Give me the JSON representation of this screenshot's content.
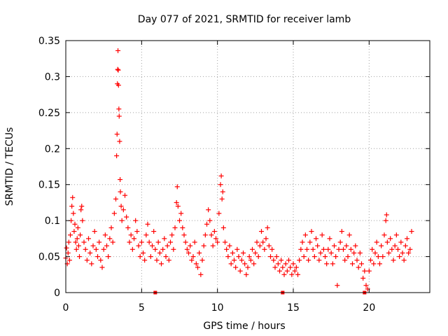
{
  "chart_data": {
    "type": "scatter",
    "title": "Day 077 of 2021, SRMTID for receiver lamb",
    "xlabel": "GPS time / hours",
    "ylabel": "SRMTID / TECUs",
    "xlim": [
      0,
      24
    ],
    "ylim": [
      0,
      0.35
    ],
    "xticks": [
      0,
      5,
      10,
      15,
      20
    ],
    "xtick_labels": [
      "0",
      "5",
      "10",
      "15",
      "20"
    ],
    "yticks": [
      0,
      0.05,
      0.1,
      0.15,
      0.2,
      0.25,
      0.3,
      0.35
    ],
    "ytick_labels": [
      "0",
      "0.05",
      "0.1",
      "0.15",
      "0.2",
      "0.25",
      "0.3",
      "0.35"
    ],
    "grid": true,
    "marker": "plus",
    "color": "#ff0000",
    "series": [
      {
        "name": "SRMTID",
        "points": [
          [
            0.0,
            0.048
          ],
          [
            0.05,
            0.062
          ],
          [
            0.1,
            0.04
          ],
          [
            0.15,
            0.055
          ],
          [
            0.2,
            0.07
          ],
          [
            0.25,
            0.045
          ],
          [
            0.3,
            0.08
          ],
          [
            0.35,
            0.1
          ],
          [
            0.4,
            0.12
          ],
          [
            0.45,
            0.132
          ],
          [
            0.5,
            0.11
          ],
          [
            0.55,
            0.085
          ],
          [
            0.6,
            0.095
          ],
          [
            0.65,
            0.07
          ],
          [
            0.7,
            0.06
          ],
          [
            0.75,
            0.075
          ],
          [
            0.8,
            0.09
          ],
          [
            0.85,
            0.065
          ],
          [
            0.9,
            0.05
          ],
          [
            0.95,
            0.08
          ],
          [
            1.0,
            0.115
          ],
          [
            1.05,
            0.12
          ],
          [
            1.1,
            0.1
          ],
          [
            1.2,
            0.07
          ],
          [
            1.3,
            0.06
          ],
          [
            1.4,
            0.045
          ],
          [
            1.5,
            0.075
          ],
          [
            1.6,
            0.055
          ],
          [
            1.7,
            0.04
          ],
          [
            1.8,
            0.065
          ],
          [
            1.9,
            0.085
          ],
          [
            2.0,
            0.06
          ],
          [
            2.1,
            0.05
          ],
          [
            2.2,
            0.07
          ],
          [
            2.3,
            0.045
          ],
          [
            2.4,
            0.035
          ],
          [
            2.5,
            0.06
          ],
          [
            2.6,
            0.08
          ],
          [
            2.7,
            0.065
          ],
          [
            2.8,
            0.05
          ],
          [
            2.9,
            0.075
          ],
          [
            3.0,
            0.09
          ],
          [
            3.1,
            0.07
          ],
          [
            3.2,
            0.11
          ],
          [
            3.3,
            0.13
          ],
          [
            3.35,
            0.19
          ],
          [
            3.38,
            0.22
          ],
          [
            3.4,
            0.29
          ],
          [
            3.42,
            0.31
          ],
          [
            3.44,
            0.336
          ],
          [
            3.46,
            0.309
          ],
          [
            3.48,
            0.288
          ],
          [
            3.5,
            0.255
          ],
          [
            3.52,
            0.245
          ],
          [
            3.55,
            0.21
          ],
          [
            3.58,
            0.157
          ],
          [
            3.6,
            0.14
          ],
          [
            3.65,
            0.12
          ],
          [
            3.7,
            0.1
          ],
          [
            3.8,
            0.115
          ],
          [
            3.9,
            0.135
          ],
          [
            4.0,
            0.105
          ],
          [
            4.1,
            0.09
          ],
          [
            4.2,
            0.07
          ],
          [
            4.3,
            0.08
          ],
          [
            4.4,
            0.06
          ],
          [
            4.5,
            0.075
          ],
          [
            4.6,
            0.1
          ],
          [
            4.7,
            0.085
          ],
          [
            4.8,
            0.065
          ],
          [
            4.9,
            0.05
          ],
          [
            5.0,
            0.07
          ],
          [
            5.1,
            0.055
          ],
          [
            5.2,
            0.045
          ],
          [
            5.3,
            0.08
          ],
          [
            5.4,
            0.095
          ],
          [
            5.5,
            0.07
          ],
          [
            5.6,
            0.05
          ],
          [
            5.7,
            0.065
          ],
          [
            5.8,
            0.085
          ],
          [
            5.9,
            0.06
          ],
          [
            6.0,
            0.045
          ],
          [
            6.1,
            0.07
          ],
          [
            6.2,
            0.055
          ],
          [
            6.3,
            0.04
          ],
          [
            6.4,
            0.06
          ],
          [
            6.5,
            0.075
          ],
          [
            6.6,
            0.05
          ],
          [
            6.7,
            0.065
          ],
          [
            6.8,
            0.045
          ],
          [
            6.9,
            0.07
          ],
          [
            7.0,
            0.08
          ],
          [
            7.1,
            0.06
          ],
          [
            7.2,
            0.09
          ],
          [
            7.3,
            0.125
          ],
          [
            7.35,
            0.147
          ],
          [
            7.4,
            0.12
          ],
          [
            7.5,
            0.1
          ],
          [
            7.6,
            0.11
          ],
          [
            7.7,
            0.09
          ],
          [
            7.8,
            0.08
          ],
          [
            7.9,
            0.07
          ],
          [
            8.0,
            0.06
          ],
          [
            8.1,
            0.055
          ],
          [
            8.2,
            0.065
          ],
          [
            8.3,
            0.045
          ],
          [
            8.4,
            0.05
          ],
          [
            8.5,
            0.07
          ],
          [
            8.6,
            0.04
          ],
          [
            8.7,
            0.035
          ],
          [
            8.8,
            0.055
          ],
          [
            8.9,
            0.025
          ],
          [
            9.0,
            0.045
          ],
          [
            9.1,
            0.065
          ],
          [
            9.2,
            0.08
          ],
          [
            9.3,
            0.095
          ],
          [
            9.4,
            0.115
          ],
          [
            9.5,
            0.1
          ],
          [
            9.6,
            0.08
          ],
          [
            9.7,
            0.065
          ],
          [
            9.8,
            0.085
          ],
          [
            9.9,
            0.075
          ],
          [
            10.0,
            0.07
          ],
          [
            10.1,
            0.11
          ],
          [
            10.2,
            0.15
          ],
          [
            10.25,
            0.162
          ],
          [
            10.3,
            0.13
          ],
          [
            10.35,
            0.14
          ],
          [
            10.4,
            0.09
          ],
          [
            10.5,
            0.07
          ],
          [
            10.6,
            0.06
          ],
          [
            10.7,
            0.05
          ],
          [
            10.8,
            0.065
          ],
          [
            10.9,
            0.04
          ],
          [
            11.0,
            0.055
          ],
          [
            11.1,
            0.045
          ],
          [
            11.2,
            0.035
          ],
          [
            11.3,
            0.06
          ],
          [
            11.4,
            0.05
          ],
          [
            11.5,
            0.03
          ],
          [
            11.6,
            0.045
          ],
          [
            11.7,
            0.055
          ],
          [
            11.8,
            0.04
          ],
          [
            11.9,
            0.025
          ],
          [
            12.0,
            0.035
          ],
          [
            12.1,
            0.05
          ],
          [
            12.2,
            0.045
          ],
          [
            12.3,
            0.06
          ],
          [
            12.4,
            0.04
          ],
          [
            12.5,
            0.055
          ],
          [
            12.6,
            0.07
          ],
          [
            12.7,
            0.05
          ],
          [
            12.8,
            0.065
          ],
          [
            12.9,
            0.085
          ],
          [
            13.0,
            0.07
          ],
          [
            13.1,
            0.06
          ],
          [
            13.2,
            0.075
          ],
          [
            13.3,
            0.09
          ],
          [
            13.4,
            0.065
          ],
          [
            13.5,
            0.05
          ],
          [
            13.6,
            0.06
          ],
          [
            13.7,
            0.045
          ],
          [
            13.8,
            0.035
          ],
          [
            13.9,
            0.05
          ],
          [
            14.0,
            0.04
          ],
          [
            14.1,
            0.03
          ],
          [
            14.2,
            0.045
          ],
          [
            14.3,
            0.035
          ],
          [
            14.4,
            0.025
          ],
          [
            14.5,
            0.04
          ],
          [
            14.6,
            0.03
          ],
          [
            14.7,
            0.045
          ],
          [
            14.8,
            0.035
          ],
          [
            14.9,
            0.025
          ],
          [
            15.0,
            0.04
          ],
          [
            15.1,
            0.03
          ],
          [
            15.2,
            0.035
          ],
          [
            15.3,
            0.025
          ],
          [
            15.4,
            0.045
          ],
          [
            15.5,
            0.06
          ],
          [
            15.6,
            0.07
          ],
          [
            15.7,
            0.05
          ],
          [
            15.8,
            0.08
          ],
          [
            15.9,
            0.06
          ],
          [
            16.0,
            0.045
          ],
          [
            16.1,
            0.07
          ],
          [
            16.2,
            0.085
          ],
          [
            16.3,
            0.06
          ],
          [
            16.4,
            0.05
          ],
          [
            16.5,
            0.075
          ],
          [
            16.6,
            0.065
          ],
          [
            16.7,
            0.045
          ],
          [
            16.8,
            0.055
          ],
          [
            16.9,
            0.08
          ],
          [
            17.0,
            0.06
          ],
          [
            17.1,
            0.05
          ],
          [
            17.2,
            0.04
          ],
          [
            17.3,
            0.06
          ],
          [
            17.4,
            0.075
          ],
          [
            17.5,
            0.055
          ],
          [
            17.6,
            0.04
          ],
          [
            17.7,
            0.065
          ],
          [
            17.8,
            0.05
          ],
          [
            17.9,
            0.01
          ],
          [
            18.0,
            0.06
          ],
          [
            18.1,
            0.07
          ],
          [
            18.2,
            0.085
          ],
          [
            18.3,
            0.06
          ],
          [
            18.4,
            0.045
          ],
          [
            18.5,
            0.065
          ],
          [
            18.6,
            0.05
          ],
          [
            18.7,
            0.08
          ],
          [
            18.8,
            0.06
          ],
          [
            18.9,
            0.04
          ],
          [
            19.0,
            0.055
          ],
          [
            19.1,
            0.065
          ],
          [
            19.2,
            0.045
          ],
          [
            19.3,
            0.035
          ],
          [
            19.4,
            0.055
          ],
          [
            19.5,
            0.04
          ],
          [
            19.6,
            0.02
          ],
          [
            19.7,
            0.03
          ],
          [
            19.8,
            0.01
          ],
          [
            19.9,
            0.005
          ],
          [
            20.0,
            0.03
          ],
          [
            20.1,
            0.045
          ],
          [
            20.2,
            0.06
          ],
          [
            20.3,
            0.04
          ],
          [
            20.4,
            0.055
          ],
          [
            20.5,
            0.07
          ],
          [
            20.6,
            0.05
          ],
          [
            20.7,
            0.04
          ],
          [
            20.8,
            0.065
          ],
          [
            20.9,
            0.05
          ],
          [
            21.0,
            0.08
          ],
          [
            21.1,
            0.1
          ],
          [
            21.15,
            0.108
          ],
          [
            21.2,
            0.07
          ],
          [
            21.3,
            0.055
          ],
          [
            21.4,
            0.075
          ],
          [
            21.5,
            0.06
          ],
          [
            21.6,
            0.045
          ],
          [
            21.7,
            0.065
          ],
          [
            21.8,
            0.08
          ],
          [
            21.9,
            0.06
          ],
          [
            22.0,
            0.05
          ],
          [
            22.1,
            0.07
          ],
          [
            22.2,
            0.055
          ],
          [
            22.3,
            0.045
          ],
          [
            22.4,
            0.065
          ],
          [
            22.5,
            0.075
          ],
          [
            22.6,
            0.055
          ],
          [
            22.7,
            0.06
          ],
          [
            22.8,
            0.085
          ]
        ]
      }
    ],
    "axis_markers": [
      5.9,
      14.3,
      19.7
    ]
  }
}
